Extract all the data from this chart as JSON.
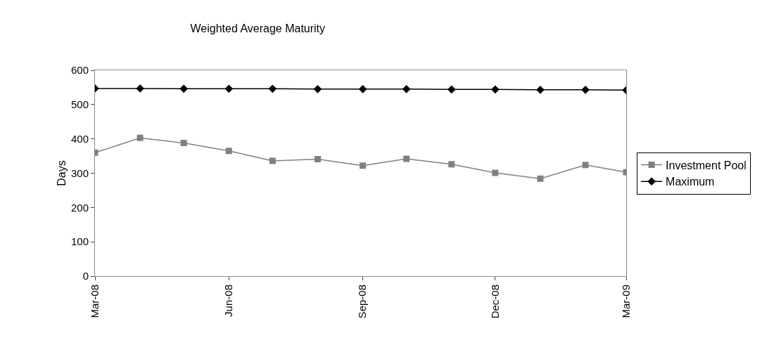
{
  "chart_data": {
    "type": "line",
    "title": "Weighted Average Maturity",
    "ylabel": "Days",
    "x": [
      "2008-03",
      "2008-04",
      "2008-05",
      "2008-06",
      "2008-07",
      "2008-08",
      "2008-09",
      "2008-10",
      "2008-11",
      "2008-12",
      "2009-01",
      "2009-02",
      "2009-03"
    ],
    "series": [
      {
        "name": "Investment Pool",
        "color": "#808080",
        "marker": "square",
        "values": [
          360,
          403,
          388,
          365,
          336,
          341,
          322,
          342,
          326,
          301,
          284,
          324,
          303
        ]
      },
      {
        "name": "Maximum",
        "color": "#000000",
        "marker": "diamond",
        "values": [
          547,
          547,
          546,
          546,
          546,
          545,
          545,
          545,
          544,
          544,
          543,
          543,
          542
        ]
      }
    ],
    "xlim": [
      "2008-03",
      "2009-03"
    ],
    "xticks": [
      {
        "value": "2008-03",
        "label": "Mar-08"
      },
      {
        "value": "2008-06",
        "label": "Jun-08"
      },
      {
        "value": "2008-09",
        "label": "Sep-08"
      },
      {
        "value": "2008-12",
        "label": "Dec-08"
      },
      {
        "value": "2009-03",
        "label": "Mar-09"
      }
    ],
    "ylim": [
      0,
      600
    ],
    "yticks": [
      0,
      100,
      200,
      300,
      400,
      500,
      600
    ],
    "grid": false,
    "legend": "right"
  }
}
